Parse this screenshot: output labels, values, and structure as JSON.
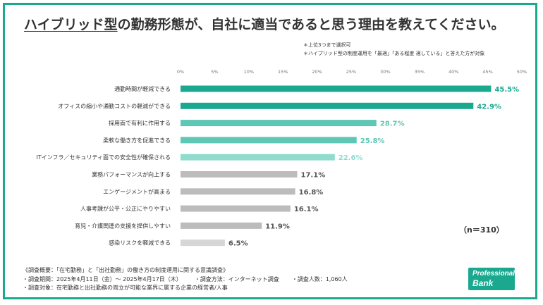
{
  "title": {
    "underlined": "ハイブリッド型",
    "rest": "の勤務形態が、自社に適当であると思う理由を教えてください。"
  },
  "notes": [
    "＊上位3つまで選択可",
    "＊ハイブリッド型の制度運用を「最適」「ある程度 適している」と答えた方が対象"
  ],
  "sample_size": "（n＝310）",
  "footer": {
    "line1": "《調査概要：「在宅勤務」と「出社勤務」の働き方の制度運用に関する意識調査》",
    "period": "・調査期間：2025年4月11日（金）〜 2025年4月17日（木）",
    "method": "・調査方法：インターネット調査",
    "count": "・調査人数：1,060人",
    "target": "・調査対象：在宅勤務と出社勤務の両立が可能な業界に属する企業の経営者/人事"
  },
  "logo": {
    "line1": "Professional",
    "line2": "Bank"
  },
  "chart_data": {
    "type": "bar",
    "orientation": "horizontal",
    "xlim": [
      0,
      50
    ],
    "ticks": [
      "0%",
      "5%",
      "10%",
      "15%",
      "20%",
      "25%",
      "30%",
      "35%",
      "40%",
      "45%",
      "50%"
    ],
    "categories": [
      "通勤時間が軽減できる",
      "オフィスの縮小や通勤コストの軽減ができる",
      "採用面で有利に作用する",
      "柔軟な働き方を促進できる",
      "ITインフラ／セキュリティ面での安全性が確保される",
      "業務パフォーマンスが向上する",
      "エンゲージメントが高まる",
      "人事考課が公平・公正にやりやすい",
      "育児・介護関連の支援を提供しやすい",
      "感染リスクを軽減できる"
    ],
    "values": [
      45.5,
      42.9,
      28.7,
      25.8,
      22.6,
      17.1,
      16.8,
      16.1,
      11.9,
      6.5
    ],
    "value_labels": [
      "45.5%",
      "42.9%",
      "28.7%",
      "25.8%",
      "22.6%",
      "17.1%",
      "16.8%",
      "16.1%",
      "11.9%",
      "6.5%"
    ],
    "bar_colors": [
      "#1aa98f",
      "#1aa98f",
      "#5fc7b5",
      "#5fc7b5",
      "#8fdccf",
      "#bcbcbc",
      "#bcbcbc",
      "#bcbcbc",
      "#bcbcbc",
      "#d6d6d6"
    ],
    "label_colors": [
      "#1aa98f",
      "#1aa98f",
      "#5fc7b5",
      "#5fc7b5",
      "#8fdccf",
      "#555555",
      "#555555",
      "#555555",
      "#555555",
      "#555555"
    ],
    "grid": false
  }
}
